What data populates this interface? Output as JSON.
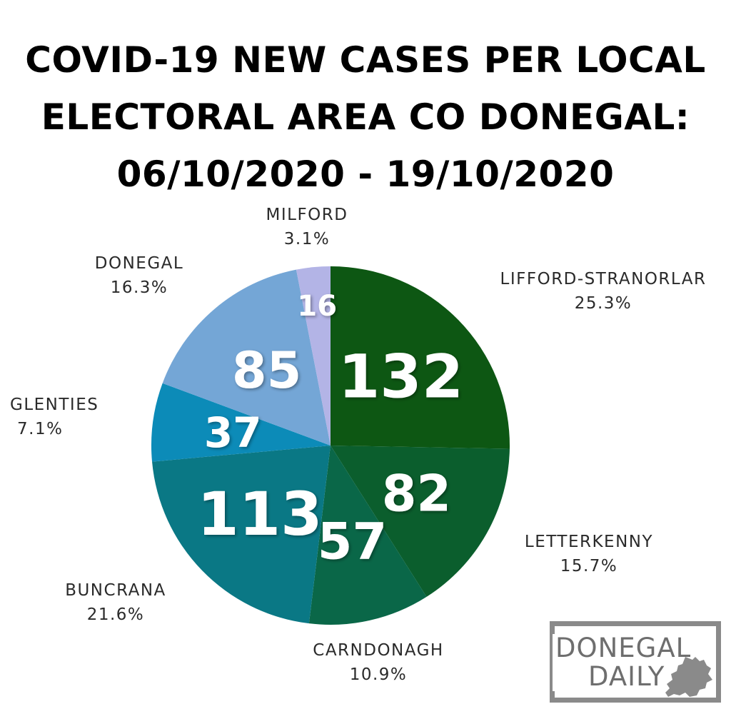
{
  "title": {
    "lines": [
      "COVID-19 NEW CASES PER LOCAL",
      "ELECTORAL AREA CO DONEGAL:",
      "06/10/2020 - 19/10/2020"
    ]
  },
  "chart_data": {
    "type": "pie",
    "title": "COVID-19 NEW CASES PER LOCAL ELECTORAL AREA CO DONEGAL: 06/10/2020 - 19/10/2020",
    "slices": [
      {
        "name": "LIFFORD-STRANORLAR",
        "value": 132,
        "percent": "25.3%",
        "color": "#0d5713"
      },
      {
        "name": "LETTERKENNY",
        "value": 82,
        "percent": "15.7%",
        "color": "#0b5e2d"
      },
      {
        "name": "CARNDONAGH",
        "value": 57,
        "percent": "10.9%",
        "color": "#0a6748"
      },
      {
        "name": "BUNCRANA",
        "value": 113,
        "percent": "21.6%",
        "color": "#0a7885"
      },
      {
        "name": "GLENTIES",
        "value": 37,
        "percent": "7.1%",
        "color": "#0c8bb8"
      },
      {
        "name": "DONEGAL",
        "value": 85,
        "percent": "16.3%",
        "color": "#74a6d6"
      },
      {
        "name": "MILFORD",
        "value": 16,
        "percent": "3.1%",
        "color": "#b3b4e6"
      }
    ],
    "start_angle": "12 o'clock, clockwise"
  },
  "logo": {
    "line1": "DONEGAL",
    "line2": "DAILY",
    "frame_color": "#8a8a8a",
    "text_color": "#6e6e6e"
  }
}
